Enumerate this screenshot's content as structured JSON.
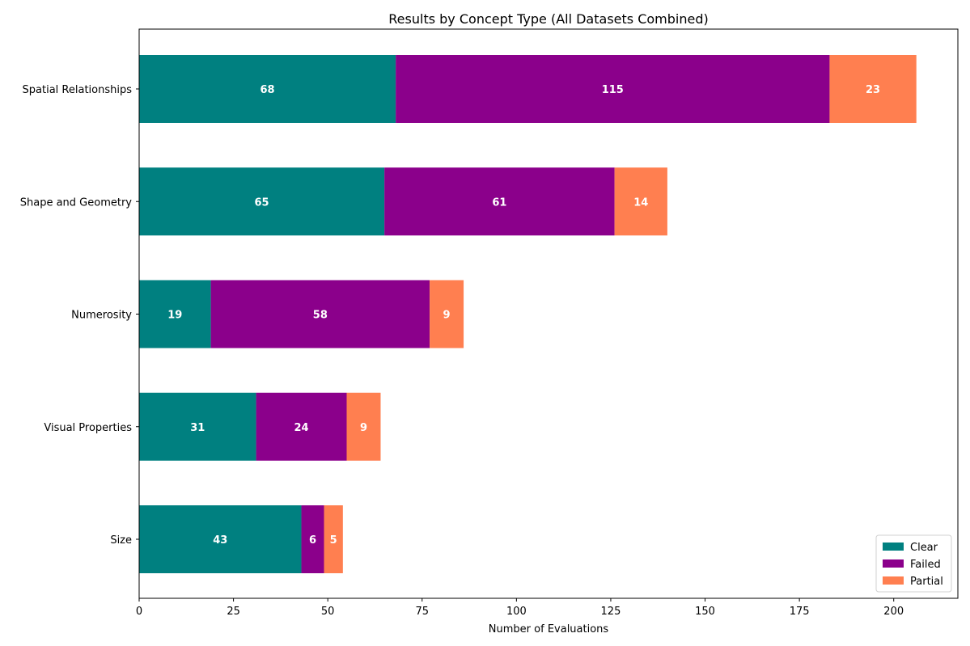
{
  "chart_data": {
    "type": "bar",
    "orientation": "horizontal",
    "stacked": true,
    "title": "Results by Concept Type (All Datasets Combined)",
    "xlabel": "Number of Evaluations",
    "ylabel": "",
    "xlim": [
      0,
      217
    ],
    "xticks": [
      0,
      25,
      50,
      75,
      100,
      125,
      150,
      175,
      200
    ],
    "categories": [
      "Spatial Relationships",
      "Shape and Geometry",
      "Numerosity",
      "Visual Properties",
      "Size"
    ],
    "series": [
      {
        "name": "Clear",
        "color": "#008080",
        "values": [
          68,
          65,
          19,
          31,
          43
        ]
      },
      {
        "name": "Failed",
        "color": "#8B008B",
        "values": [
          115,
          61,
          58,
          24,
          6
        ]
      },
      {
        "name": "Partial",
        "color": "#FF7F50",
        "values": [
          23,
          14,
          9,
          9,
          5
        ]
      }
    ],
    "data_labels": true,
    "grid": false,
    "legend_position": "bottom-right"
  }
}
